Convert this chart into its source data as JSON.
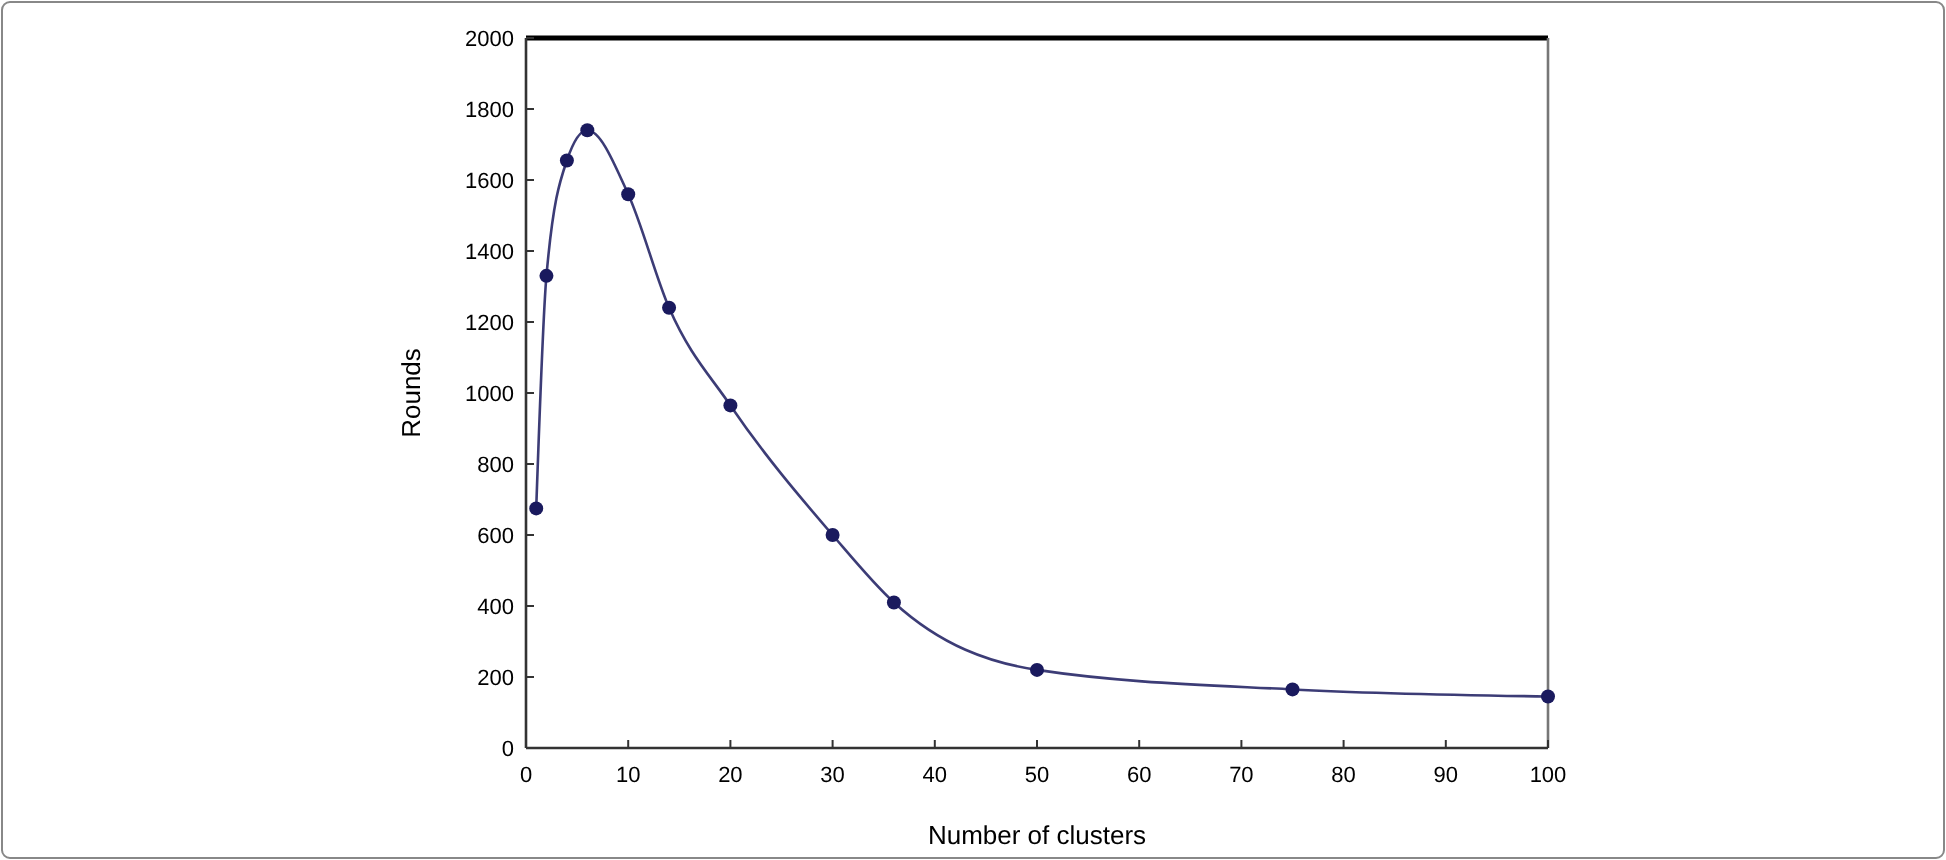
{
  "chart_data": {
    "type": "line",
    "xlabel": "Number of clusters",
    "ylabel": "Rounds",
    "x": [
      1,
      2,
      4,
      6,
      10,
      14,
      20,
      30,
      36,
      50,
      75,
      100
    ],
    "series": [
      {
        "color": "#1a1a5e",
        "values": [
          675,
          1330,
          1655,
          1740,
          1560,
          1240,
          965,
          600,
          410,
          220,
          165,
          145
        ]
      }
    ],
    "xlim": [
      0,
      100
    ],
    "xticks": [
      0,
      10,
      20,
      30,
      40,
      50,
      60,
      70,
      80,
      90,
      100
    ],
    "ylim": [
      0,
      2000
    ],
    "yticks": [
      0,
      200,
      400,
      600,
      800,
      1000,
      1200,
      1400,
      1600,
      1800,
      2000
    ],
    "grid": false,
    "marker": "circle",
    "line_style": "solid"
  }
}
